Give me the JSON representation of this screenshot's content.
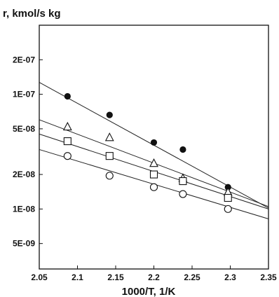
{
  "chart_data": {
    "type": "scatter",
    "title": "",
    "ylabel": "r, kmol/s kg",
    "xlabel": "1000/T, 1/K",
    "xlim": [
      2.05,
      2.35
    ],
    "ylim": [
      3e-09,
      4e-07
    ],
    "yscale": "log",
    "grid": false,
    "x_ticks": [
      2.05,
      2.1,
      2.15,
      2.2,
      2.25,
      2.3,
      2.35
    ],
    "x_tick_labels": [
      "2.05",
      "2.1",
      "2.15",
      "2.2",
      "2.25",
      "2.3",
      "2.35"
    ],
    "y_ticks": [
      5e-09,
      1e-08,
      2e-08,
      5e-08,
      1e-07,
      2e-07
    ],
    "y_tick_labels": [
      "5E-09",
      "1E-08",
      "2E-08",
      "5E-08",
      "1E-07",
      "2E-07"
    ],
    "series": [
      {
        "marker": "filled-circle",
        "x": [
          2.087,
          2.142,
          2.2,
          2.238,
          2.297
        ],
        "y": [
          9.6e-08,
          6.6e-08,
          3.8e-08,
          3.3e-08,
          1.55e-08
        ],
        "fit_line": {
          "x": [
            2.05,
            2.35
          ],
          "y": [
            1.27e-07,
            1.02e-08
          ]
        }
      },
      {
        "marker": "open-triangle",
        "x": [
          2.087,
          2.142,
          2.2,
          2.238,
          2.297
        ],
        "y": [
          5.2e-08,
          4.2e-08,
          2.5e-08,
          1.85e-08,
          1.4e-08
        ],
        "fit_line": {
          "x": [
            2.05,
            2.35
          ],
          "y": [
            6e-08,
            1.05e-08
          ]
        }
      },
      {
        "marker": "open-square",
        "x": [
          2.087,
          2.142,
          2.2,
          2.238,
          2.297
        ],
        "y": [
          3.9e-08,
          2.9e-08,
          2e-08,
          1.75e-08,
          1.25e-08
        ],
        "fit_line": {
          "x": [
            2.05,
            2.35
          ],
          "y": [
            4.5e-08,
            1e-08
          ]
        }
      },
      {
        "marker": "open-circle",
        "x": [
          2.087,
          2.142,
          2.2,
          2.238,
          2.297
        ],
        "y": [
          2.9e-08,
          1.95e-08,
          1.55e-08,
          1.35e-08,
          1e-08
        ],
        "fit_line": {
          "x": [
            2.05,
            2.35
          ],
          "y": [
            3.3e-08,
            8.2e-09
          ]
        }
      }
    ]
  }
}
